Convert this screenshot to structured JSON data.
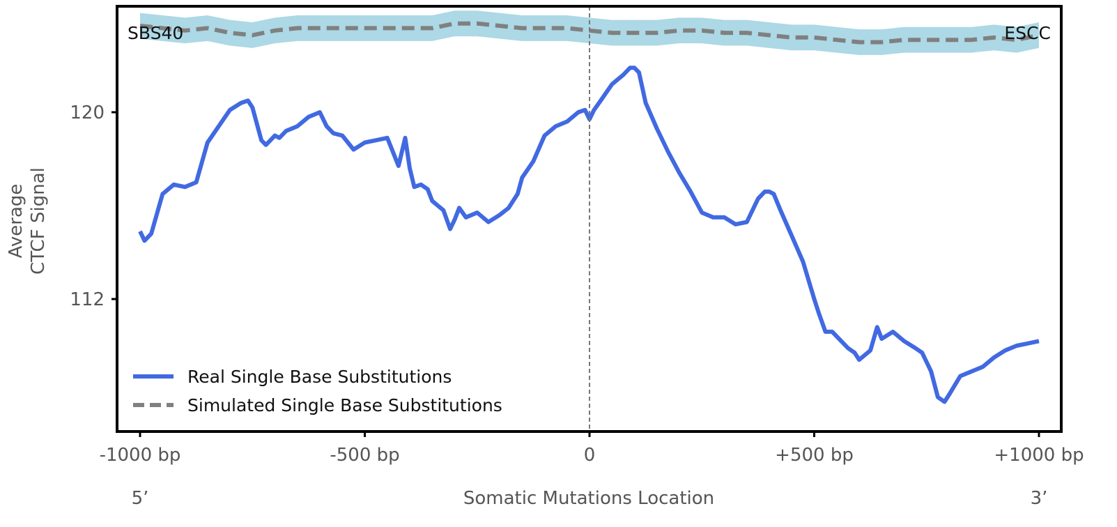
{
  "chart_data": {
    "type": "line",
    "title": "",
    "xlabel": "Somatic Mutations Location",
    "ylabel_lines": [
      "Average",
      "CTCF Signal"
    ],
    "xlim": [
      -1000,
      1000
    ],
    "ylim": [
      106.4,
      124.6
    ],
    "x_ticks": [
      {
        "value": -1000,
        "label": "-1000 bp"
      },
      {
        "value": -500,
        "label": "-500 bp"
      },
      {
        "value": 0,
        "label": "0"
      },
      {
        "value": 500,
        "label": "+500 bp"
      },
      {
        "value": 1000,
        "label": "+1000 bp"
      }
    ],
    "y_ticks": [
      {
        "value": 112,
        "label": "112"
      },
      {
        "value": 120,
        "label": "120"
      }
    ],
    "end_labels": {
      "left": "5’",
      "right": "3’"
    },
    "annotations": {
      "left": "SBS40",
      "right": "ESCC"
    },
    "reference_line_x": 0,
    "grid": false,
    "legend_position": "bottom-left",
    "series": [
      {
        "name": "Real Single Base Substitutions",
        "style": "solid",
        "color": "#4169e1",
        "x": [
          -1000,
          -990,
          -975,
          -950,
          -925,
          -900,
          -875,
          -850,
          -825,
          -800,
          -775,
          -760,
          -750,
          -730,
          -720,
          -700,
          -690,
          -675,
          -650,
          -625,
          -600,
          -585,
          -570,
          -550,
          -525,
          -500,
          -475,
          -450,
          -425,
          -410,
          -400,
          -390,
          -375,
          -360,
          -350,
          -325,
          -310,
          -300,
          -290,
          -275,
          -250,
          -225,
          -200,
          -180,
          -160,
          -150,
          -125,
          -100,
          -75,
          -50,
          -25,
          -10,
          0,
          10,
          25,
          50,
          75,
          90,
          100,
          110,
          125,
          150,
          175,
          200,
          225,
          250,
          275,
          300,
          325,
          350,
          375,
          390,
          400,
          410,
          425,
          450,
          475,
          500,
          510,
          525,
          540,
          550,
          575,
          590,
          600,
          625,
          640,
          650,
          675,
          700,
          725,
          740,
          750,
          760,
          775,
          790,
          800,
          825,
          850,
          875,
          900,
          925,
          950,
          975,
          1000
        ],
        "values": [
          114.9,
          114.5,
          114.8,
          116.5,
          116.9,
          116.8,
          117.0,
          118.7,
          119.4,
          120.1,
          120.4,
          120.5,
          120.2,
          118.8,
          118.6,
          119.0,
          118.9,
          119.2,
          119.4,
          119.8,
          120.0,
          119.4,
          119.1,
          119.0,
          118.4,
          118.7,
          118.8,
          118.9,
          117.7,
          118.9,
          117.6,
          116.8,
          116.9,
          116.7,
          116.2,
          115.8,
          115.0,
          115.4,
          115.9,
          115.5,
          115.7,
          115.3,
          115.6,
          115.9,
          116.5,
          117.2,
          117.9,
          119.0,
          119.4,
          119.6,
          120.0,
          120.1,
          119.7,
          120.1,
          120.5,
          121.2,
          121.6,
          121.9,
          121.9,
          121.7,
          120.4,
          119.3,
          118.3,
          117.4,
          116.6,
          115.7,
          115.5,
          115.5,
          115.2,
          115.3,
          116.3,
          116.6,
          116.6,
          116.5,
          115.8,
          114.7,
          113.6,
          112.0,
          111.4,
          110.6,
          110.6,
          110.4,
          109.9,
          109.7,
          109.4,
          109.8,
          110.8,
          110.3,
          110.6,
          110.2,
          109.9,
          109.7,
          109.3,
          108.9,
          107.8,
          107.6,
          107.9,
          108.7,
          108.9,
          109.1,
          109.5,
          109.8,
          110.0,
          110.1,
          110.2
        ]
      },
      {
        "name": "Simulated Single Base Substitutions",
        "style": "dashed",
        "color": "#808080",
        "band_color": "#add8e6",
        "x": [
          -1000,
          -950,
          -900,
          -850,
          -800,
          -750,
          -700,
          -650,
          -600,
          -550,
          -500,
          -450,
          -400,
          -350,
          -300,
          -250,
          -200,
          -150,
          -100,
          -50,
          0,
          50,
          100,
          150,
          200,
          250,
          300,
          350,
          400,
          450,
          500,
          550,
          600,
          650,
          700,
          750,
          800,
          850,
          900,
          950,
          1000
        ],
        "values": [
          123.7,
          123.6,
          123.5,
          123.6,
          123.4,
          123.3,
          123.5,
          123.6,
          123.6,
          123.6,
          123.6,
          123.6,
          123.6,
          123.6,
          123.8,
          123.8,
          123.7,
          123.6,
          123.6,
          123.6,
          123.5,
          123.4,
          123.4,
          123.4,
          123.5,
          123.5,
          123.4,
          123.4,
          123.3,
          123.2,
          123.2,
          123.1,
          123.0,
          123.0,
          123.1,
          123.1,
          123.1,
          123.1,
          123.2,
          123.1,
          123.3
        ],
        "band_halfwidth": 0.55
      }
    ]
  }
}
